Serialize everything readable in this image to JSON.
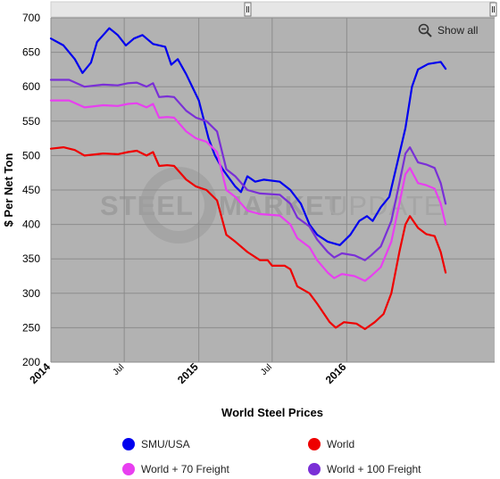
{
  "chart_data": {
    "type": "line",
    "title": "",
    "xlabel": "World Steel Prices",
    "ylabel": "$ Per Net Ton",
    "xlim": [
      "2014-01-01",
      "2016-12-31"
    ],
    "ylim": [
      200,
      700
    ],
    "yticks": [
      200,
      250,
      300,
      350,
      400,
      450,
      500,
      550,
      600,
      650,
      700
    ],
    "xticks": [
      {
        "date": "2014-01-01",
        "label": "2014",
        "major": true
      },
      {
        "date": "2014-07-01",
        "label": "Jul",
        "major": false
      },
      {
        "date": "2015-01-01",
        "label": "2015",
        "major": true
      },
      {
        "date": "2015-07-01",
        "label": "Jul",
        "major": false
      },
      {
        "date": "2016-01-01",
        "label": "2016",
        "major": true
      }
    ],
    "grid": true,
    "legend_position": "bottom",
    "watermark": "STEEL MARKET UPDATE",
    "series": [
      {
        "name": "SMU/USA",
        "color": "#0000ee",
        "points": [
          [
            "2014-01-01",
            670
          ],
          [
            "2014-02-01",
            660
          ],
          [
            "2014-03-01",
            640
          ],
          [
            "2014-03-20",
            620
          ],
          [
            "2014-04-10",
            635
          ],
          [
            "2014-04-25",
            665
          ],
          [
            "2014-05-10",
            675
          ],
          [
            "2014-05-25",
            685
          ],
          [
            "2014-06-15",
            675
          ],
          [
            "2014-07-05",
            660
          ],
          [
            "2014-07-25",
            670
          ],
          [
            "2014-08-15",
            675
          ],
          [
            "2014-09-10",
            662
          ],
          [
            "2014-10-10",
            658
          ],
          [
            "2014-10-25",
            632
          ],
          [
            "2014-11-10",
            640
          ],
          [
            "2014-12-01",
            618
          ],
          [
            "2015-01-01",
            580
          ],
          [
            "2015-01-25",
            525
          ],
          [
            "2015-02-10",
            500
          ],
          [
            "2015-03-01",
            480
          ],
          [
            "2015-04-01",
            455
          ],
          [
            "2015-04-15",
            447
          ],
          [
            "2015-05-01",
            470
          ],
          [
            "2015-05-20",
            462
          ],
          [
            "2015-06-10",
            465
          ],
          [
            "2015-07-20",
            462
          ],
          [
            "2015-08-15",
            450
          ],
          [
            "2015-09-10",
            430
          ],
          [
            "2015-10-01",
            400
          ],
          [
            "2015-10-20",
            385
          ],
          [
            "2015-11-15",
            375
          ],
          [
            "2015-12-15",
            370
          ],
          [
            "2016-01-10",
            385
          ],
          [
            "2016-02-01",
            405
          ],
          [
            "2016-02-20",
            412
          ],
          [
            "2016-03-05",
            405
          ],
          [
            "2016-03-25",
            425
          ],
          [
            "2016-04-15",
            440
          ],
          [
            "2016-05-05",
            490
          ],
          [
            "2016-05-25",
            540
          ],
          [
            "2016-06-10",
            600
          ],
          [
            "2016-06-25",
            625
          ],
          [
            "2016-07-20",
            633
          ],
          [
            "2016-08-20",
            636
          ],
          [
            "2016-09-01",
            626
          ]
        ]
      },
      {
        "name": "World + 100 Freight",
        "color": "#7a2fd6",
        "points": [
          [
            "2014-01-01",
            610
          ],
          [
            "2014-02-15",
            610
          ],
          [
            "2014-03-25",
            600
          ],
          [
            "2014-05-10",
            603
          ],
          [
            "2014-06-15",
            602
          ],
          [
            "2014-07-10",
            605
          ],
          [
            "2014-08-01",
            606
          ],
          [
            "2014-08-25",
            600
          ],
          [
            "2014-09-10",
            605
          ],
          [
            "2014-09-25",
            585
          ],
          [
            "2014-10-15",
            586
          ],
          [
            "2014-11-01",
            585
          ],
          [
            "2014-12-01",
            565
          ],
          [
            "2014-12-25",
            555
          ],
          [
            "2015-01-20",
            550
          ],
          [
            "2015-02-15",
            535
          ],
          [
            "2015-03-10",
            480
          ],
          [
            "2015-04-01",
            470
          ],
          [
            "2015-05-01",
            450
          ],
          [
            "2015-06-01",
            445
          ],
          [
            "2015-07-20",
            443
          ],
          [
            "2015-08-15",
            430
          ],
          [
            "2015-09-01",
            410
          ],
          [
            "2015-10-01",
            397
          ],
          [
            "2015-10-20",
            378
          ],
          [
            "2015-11-15",
            360
          ],
          [
            "2015-12-01",
            352
          ],
          [
            "2015-12-20",
            358
          ],
          [
            "2016-01-20",
            355
          ],
          [
            "2016-02-15",
            348
          ],
          [
            "2016-03-01",
            355
          ],
          [
            "2016-03-25",
            368
          ],
          [
            "2016-04-20",
            405
          ],
          [
            "2016-05-10",
            460
          ],
          [
            "2016-05-25",
            503
          ],
          [
            "2016-06-05",
            512
          ],
          [
            "2016-06-25",
            490
          ],
          [
            "2016-07-15",
            487
          ],
          [
            "2016-08-05",
            482
          ],
          [
            "2016-08-20",
            460
          ],
          [
            "2016-09-01",
            430
          ]
        ]
      },
      {
        "name": "World + 70 Freight",
        "color": "#e83ff0",
        "points": [
          [
            "2014-01-01",
            580
          ],
          [
            "2014-02-15",
            580
          ],
          [
            "2014-03-25",
            570
          ],
          [
            "2014-05-10",
            573
          ],
          [
            "2014-06-15",
            572
          ],
          [
            "2014-07-10",
            575
          ],
          [
            "2014-08-01",
            576
          ],
          [
            "2014-08-25",
            570
          ],
          [
            "2014-09-10",
            575
          ],
          [
            "2014-09-25",
            555
          ],
          [
            "2014-10-15",
            556
          ],
          [
            "2014-11-01",
            555
          ],
          [
            "2014-12-01",
            535
          ],
          [
            "2014-12-25",
            525
          ],
          [
            "2015-01-20",
            520
          ],
          [
            "2015-02-15",
            505
          ],
          [
            "2015-03-10",
            450
          ],
          [
            "2015-04-01",
            440
          ],
          [
            "2015-05-01",
            420
          ],
          [
            "2015-06-01",
            415
          ],
          [
            "2015-07-20",
            413
          ],
          [
            "2015-08-15",
            400
          ],
          [
            "2015-09-01",
            380
          ],
          [
            "2015-10-01",
            367
          ],
          [
            "2015-10-20",
            348
          ],
          [
            "2015-11-15",
            330
          ],
          [
            "2015-12-01",
            322
          ],
          [
            "2015-12-20",
            328
          ],
          [
            "2016-01-20",
            325
          ],
          [
            "2016-02-15",
            318
          ],
          [
            "2016-03-01",
            325
          ],
          [
            "2016-03-25",
            338
          ],
          [
            "2016-04-20",
            375
          ],
          [
            "2016-05-10",
            430
          ],
          [
            "2016-05-25",
            473
          ],
          [
            "2016-06-05",
            482
          ],
          [
            "2016-06-25",
            460
          ],
          [
            "2016-07-15",
            457
          ],
          [
            "2016-08-05",
            452
          ],
          [
            "2016-08-20",
            430
          ],
          [
            "2016-09-01",
            400
          ]
        ]
      },
      {
        "name": "World",
        "color": "#ee0000",
        "points": [
          [
            "2014-01-01",
            510
          ],
          [
            "2014-02-01",
            512
          ],
          [
            "2014-03-01",
            508
          ],
          [
            "2014-03-25",
            500
          ],
          [
            "2014-05-10",
            503
          ],
          [
            "2014-06-15",
            502
          ],
          [
            "2014-07-10",
            505
          ],
          [
            "2014-08-01",
            507
          ],
          [
            "2014-08-25",
            500
          ],
          [
            "2014-09-10",
            505
          ],
          [
            "2014-09-25",
            485
          ],
          [
            "2014-10-15",
            486
          ],
          [
            "2014-11-01",
            485
          ],
          [
            "2014-12-01",
            465
          ],
          [
            "2014-12-25",
            455
          ],
          [
            "2015-01-20",
            450
          ],
          [
            "2015-02-15",
            435
          ],
          [
            "2015-03-10",
            385
          ],
          [
            "2015-04-01",
            375
          ],
          [
            "2015-05-01",
            360
          ],
          [
            "2015-06-01",
            348
          ],
          [
            "2015-06-20",
            348
          ],
          [
            "2015-07-01",
            340
          ],
          [
            "2015-08-01",
            340
          ],
          [
            "2015-08-15",
            335
          ],
          [
            "2015-09-01",
            310
          ],
          [
            "2015-10-01",
            300
          ],
          [
            "2015-10-20",
            285
          ],
          [
            "2015-11-20",
            258
          ],
          [
            "2015-12-05",
            250
          ],
          [
            "2015-12-25",
            258
          ],
          [
            "2016-01-25",
            256
          ],
          [
            "2016-02-15",
            248
          ],
          [
            "2016-03-10",
            258
          ],
          [
            "2016-04-01",
            270
          ],
          [
            "2016-04-20",
            300
          ],
          [
            "2016-05-10",
            360
          ],
          [
            "2016-05-25",
            400
          ],
          [
            "2016-06-05",
            412
          ],
          [
            "2016-06-25",
            395
          ],
          [
            "2016-07-15",
            386
          ],
          [
            "2016-08-05",
            383
          ],
          [
            "2016-08-20",
            360
          ],
          [
            "2016-09-01",
            330
          ]
        ]
      }
    ]
  },
  "toolbar": {
    "show_all_label": "Show all"
  }
}
